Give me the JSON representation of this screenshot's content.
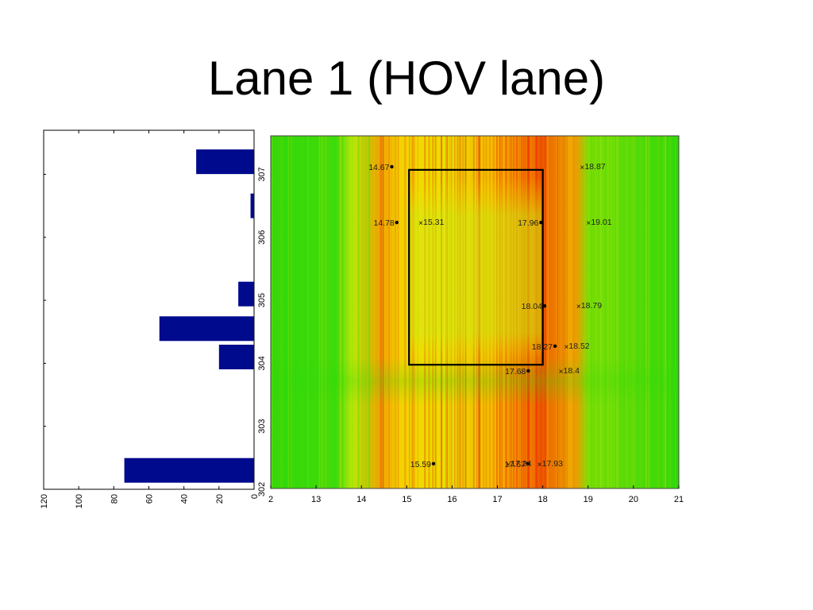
{
  "slide": {
    "title": "Lane 1 (HOV lane)"
  },
  "chart_data": [
    {
      "type": "bar",
      "orientation": "horizontal",
      "xlim": [
        0,
        120
      ],
      "x_reversed": true,
      "xticks": [
        "120",
        "100",
        "80",
        "60",
        "40",
        "20",
        "0"
      ],
      "ylim": [
        302,
        307.7
      ],
      "yticks": [
        "302",
        "303",
        "304",
        "305",
        "306",
        "307"
      ],
      "bar_color": "#000a8c",
      "bars": [
        {
          "y": 307.2,
          "value": 33
        },
        {
          "y": 306.5,
          "value": 2
        },
        {
          "y": 305.1,
          "value": 9
        },
        {
          "y": 304.55,
          "value": 54
        },
        {
          "y": 304.1,
          "value": 20
        },
        {
          "y": 302.3,
          "value": 74
        }
      ]
    },
    {
      "type": "heatmap",
      "xlim": [
        12,
        21
      ],
      "xticks": [
        "2",
        "13",
        "14",
        "15",
        "16",
        "17",
        "18",
        "19",
        "20",
        "21"
      ],
      "ylim": [
        302,
        307.7
      ],
      "colormap": [
        "#2ed80a",
        "#ffee00",
        "#f05000"
      ],
      "congestion_columns": [
        {
          "x": 14.7,
          "intensity": 0.5
        },
        {
          "x": 15.1,
          "intensity": 0.8
        },
        {
          "x": 15.6,
          "intensity": 0.7
        },
        {
          "x": 16.2,
          "intensity": 0.6
        },
        {
          "x": 16.8,
          "intensity": 0.85
        },
        {
          "x": 17.3,
          "intensity": 0.9
        },
        {
          "x": 17.8,
          "intensity": 0.95
        },
        {
          "x": 18.2,
          "intensity": 0.8
        }
      ],
      "box": {
        "x": [
          15.05,
          18.0
        ],
        "y": [
          304.0,
          307.15
        ]
      },
      "annotations": [
        {
          "x": 14.67,
          "y": 307.2,
          "label": "14.67",
          "marker": "dot"
        },
        {
          "x": 18.87,
          "y": 307.2,
          "label": "18.87",
          "marker": "cross"
        },
        {
          "x": 14.78,
          "y": 306.3,
          "label": "14.78",
          "marker": "dot"
        },
        {
          "x": 15.31,
          "y": 306.3,
          "label": "15.31",
          "marker": "cross"
        },
        {
          "x": 17.96,
          "y": 306.3,
          "label": "17.96",
          "marker": "dot"
        },
        {
          "x": 19.01,
          "y": 306.3,
          "label": "19.01",
          "marker": "cross"
        },
        {
          "x": 18.04,
          "y": 304.95,
          "label": "18.04",
          "marker": "dot"
        },
        {
          "x": 18.79,
          "y": 304.95,
          "label": "18.79",
          "marker": "cross"
        },
        {
          "x": 18.27,
          "y": 304.3,
          "label": "18.27",
          "marker": "dot"
        },
        {
          "x": 18.52,
          "y": 304.3,
          "label": "18.52",
          "marker": "cross"
        },
        {
          "x": 17.68,
          "y": 303.9,
          "label": "17.68",
          "marker": "dot"
        },
        {
          "x": 18.4,
          "y": 303.9,
          "label": "18.4",
          "marker": "cross"
        },
        {
          "x": 15.59,
          "y": 302.4,
          "label": "15.59",
          "marker": "dot"
        },
        {
          "x": 17.67,
          "y": 302.4,
          "label": "17.67",
          "marker": "dot"
        },
        {
          "x": 17.24,
          "y": 302.4,
          "label": "17.24",
          "marker": "cross"
        },
        {
          "x": 17.93,
          "y": 302.4,
          "label": "17.93",
          "marker": "cross"
        }
      ]
    }
  ]
}
